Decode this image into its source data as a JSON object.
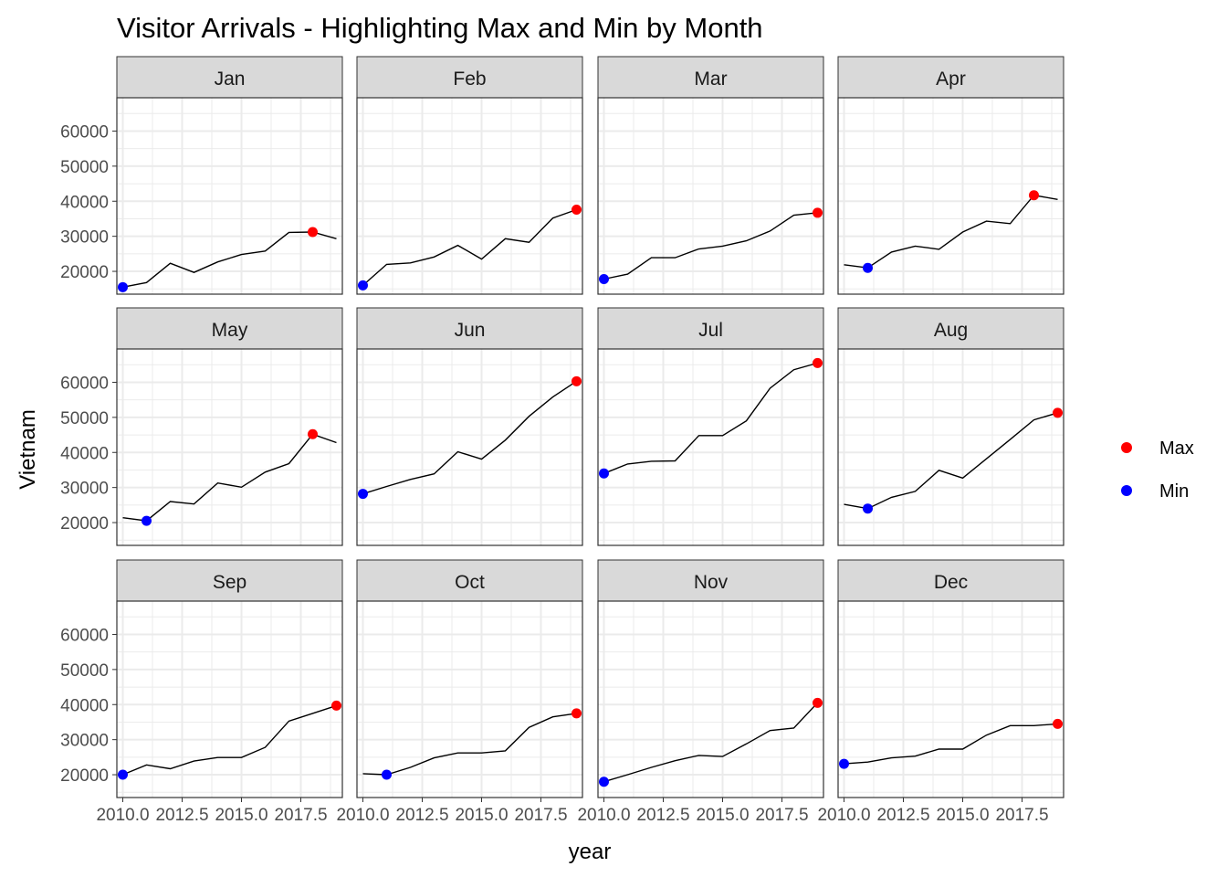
{
  "chart_data": {
    "type": "line",
    "title": "Visitor Arrivals - Highlighting Max and Min by Month",
    "xlabel": "year",
    "ylabel": "Vietnam",
    "xlim": [
      2009.75,
      2019.25
    ],
    "ylim": [
      13500,
      69500
    ],
    "x_ticks": [
      "2010.0",
      "2012.5",
      "2015.0",
      "2017.5"
    ],
    "x_tick_values": [
      2010,
      2012.5,
      2015,
      2017.5
    ],
    "y_ticks": [
      "20000",
      "30000",
      "40000",
      "50000",
      "60000"
    ],
    "y_tick_values": [
      20000,
      30000,
      40000,
      50000,
      60000
    ],
    "grid": true,
    "legend_position": "right",
    "legend": [
      {
        "label": "Max",
        "color": "#ff0000"
      },
      {
        "label": "Min",
        "color": "#0000ff"
      }
    ],
    "colors": {
      "line": "#000000",
      "max": "#ff0000",
      "min": "#0000ff",
      "strip": "#d9d9d9",
      "grid": "#ebebeb"
    },
    "years": [
      2010,
      2011,
      2012,
      2013,
      2014,
      2015,
      2016,
      2017,
      2018,
      2019
    ],
    "panels": [
      {
        "month": "Jan",
        "values": [
          15500,
          16800,
          22300,
          19700,
          22700,
          24800,
          25800,
          31100,
          31200,
          29300
        ],
        "max_index": 8,
        "min_index": 0
      },
      {
        "month": "Feb",
        "values": [
          16000,
          22000,
          22400,
          24100,
          27400,
          23500,
          29300,
          28300,
          35200,
          37600
        ],
        "max_index": 9,
        "min_index": 0
      },
      {
        "month": "Mar",
        "values": [
          17800,
          19200,
          23900,
          23900,
          26400,
          27200,
          28700,
          31500,
          36000,
          36700
        ],
        "max_index": 9,
        "min_index": 0
      },
      {
        "month": "Apr",
        "values": [
          21900,
          21000,
          25500,
          27200,
          26300,
          31200,
          34300,
          33600,
          41700,
          40500
        ],
        "max_index": 8,
        "min_index": 1
      },
      {
        "month": "May",
        "values": [
          21400,
          20500,
          26000,
          25300,
          31300,
          30100,
          34400,
          36800,
          45200,
          42800
        ],
        "max_index": 8,
        "min_index": 1
      },
      {
        "month": "Jun",
        "values": [
          28200,
          30300,
          32300,
          33900,
          40200,
          38100,
          43500,
          50300,
          55800,
          60300
        ],
        "max_index": 9,
        "min_index": 0
      },
      {
        "month": "Jul",
        "values": [
          34000,
          36700,
          37500,
          37600,
          44800,
          44800,
          49000,
          58300,
          63600,
          65500
        ],
        "max_index": 9,
        "min_index": 0
      },
      {
        "month": "Aug",
        "values": [
          25200,
          24000,
          27200,
          28900,
          34900,
          32700,
          38200,
          43700,
          49300,
          51300
        ],
        "max_index": 9,
        "min_index": 1
      },
      {
        "month": "Sep",
        "values": [
          20000,
          22800,
          21700,
          23900,
          24900,
          24900,
          27800,
          35300,
          37500,
          39700
        ],
        "max_index": 9,
        "min_index": 0
      },
      {
        "month": "Oct",
        "values": [
          20300,
          20000,
          22100,
          24800,
          26200,
          26200,
          26800,
          33500,
          36500,
          37500
        ],
        "max_index": 9,
        "min_index": 1
      },
      {
        "month": "Nov",
        "values": [
          18000,
          20000,
          22100,
          24000,
          25500,
          25200,
          28800,
          32600,
          33300,
          40500
        ],
        "max_index": 9,
        "min_index": 0
      },
      {
        "month": "Dec",
        "values": [
          23100,
          23600,
          24800,
          25300,
          27300,
          27300,
          31300,
          34000,
          34000,
          34500
        ],
        "max_index": 9,
        "min_index": 0
      }
    ]
  }
}
